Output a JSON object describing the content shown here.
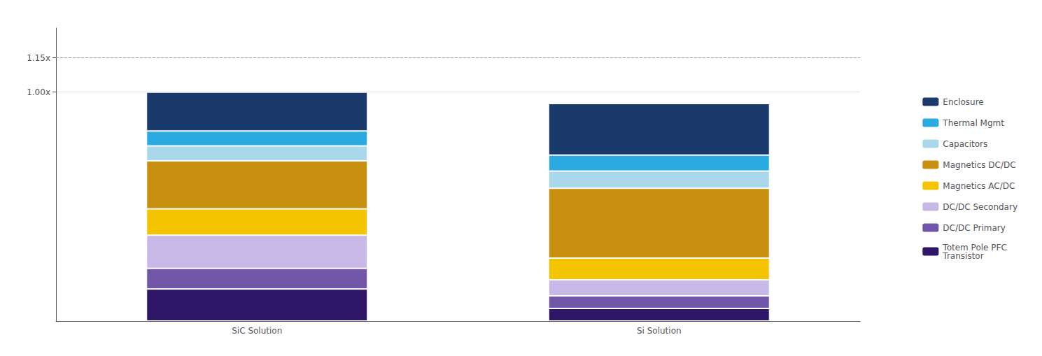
{
  "chart_data": {
    "type": "bar",
    "stacked": true,
    "categories": [
      "SiC Solution",
      "Si Solution"
    ],
    "series": [
      {
        "name": "Totem Pole PFC\nTransistor",
        "color": "#2E1566",
        "values": [
          0.14,
          0.055
        ]
      },
      {
        "name": "DC/DC Primary",
        "color": "#7055A8",
        "values": [
          0.09,
          0.055
        ]
      },
      {
        "name": "DC/DC Secondary",
        "color": "#C8B8E8",
        "values": [
          0.145,
          0.07
        ]
      },
      {
        "name": "Magnetics AC/DC",
        "color": "#F5C400",
        "values": [
          0.115,
          0.095
        ]
      },
      {
        "name": "Magnetics DC/DC",
        "color": "#C89010",
        "values": [
          0.21,
          0.305
        ]
      },
      {
        "name": "Capacitors",
        "color": "#A8D8EA",
        "values": [
          0.065,
          0.075
        ]
      },
      {
        "name": "Thermal Mgmt",
        "color": "#29ABE2",
        "values": [
          0.065,
          0.07
        ]
      },
      {
        "name": "Enclosure",
        "color": "#1A3A6B",
        "values": [
          0.17,
          0.225
        ]
      }
    ],
    "ylim": [
      0,
      1.28
    ],
    "yticks": [
      {
        "value": 1.0,
        "label": "1.00x"
      },
      {
        "value": 1.15,
        "label": "1.15x"
      }
    ],
    "hline": 1.15,
    "grid": true,
    "legend": "right"
  }
}
